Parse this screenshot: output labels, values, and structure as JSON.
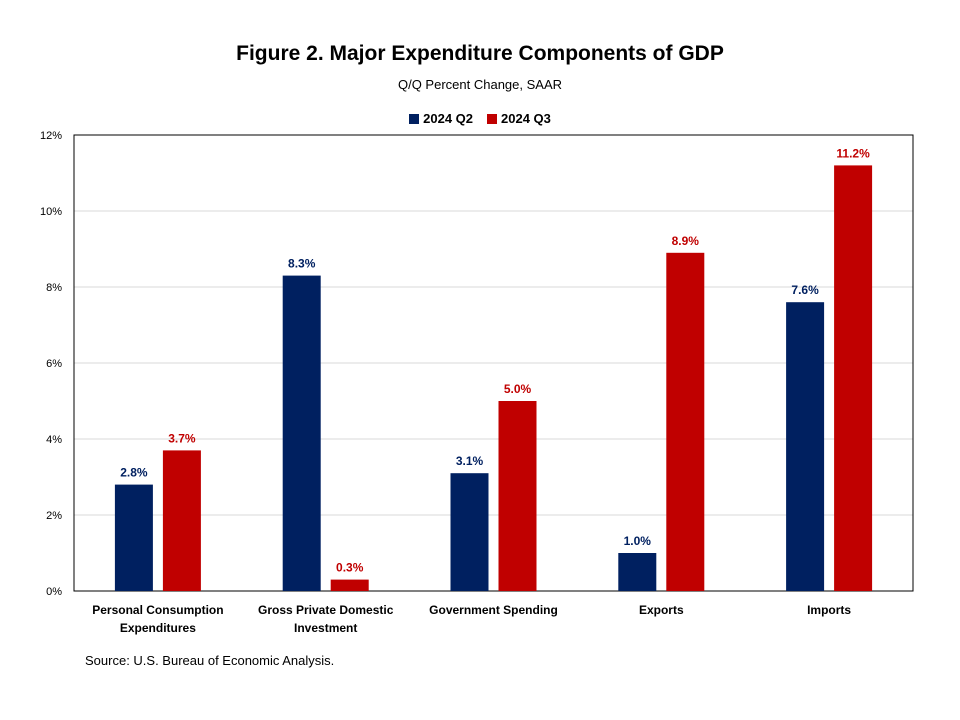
{
  "chart_data": {
    "type": "bar",
    "title": "Figure 2. Major Expenditure Components of GDP",
    "subtitle": "Q/Q Percent Change, SAAR",
    "categories": [
      [
        "Personal Consumption",
        "Expenditures"
      ],
      [
        "Gross Private Domestic",
        "Investment"
      ],
      [
        "Government Spending"
      ],
      [
        "Exports"
      ],
      [
        "Imports"
      ]
    ],
    "series": [
      {
        "name": "2024 Q2",
        "color": "#002060",
        "values": [
          2.8,
          8.3,
          3.1,
          1.0,
          7.6
        ],
        "labels": [
          "2.8%",
          "8.3%",
          "3.1%",
          "1.0%",
          "7.6%"
        ]
      },
      {
        "name": "2024 Q3",
        "color": "#C00000",
        "values": [
          3.7,
          0.3,
          5.0,
          8.9,
          11.2
        ],
        "labels": [
          "3.7%",
          "0.3%",
          "5.0%",
          "8.9%",
          "11.2%"
        ]
      }
    ],
    "ylim": [
      0,
      12
    ],
    "yticks": [
      0,
      2,
      4,
      6,
      8,
      10,
      12
    ],
    "ytick_labels": [
      "0%",
      "2%",
      "4%",
      "6%",
      "8%",
      "10%",
      "12%"
    ],
    "grid": true,
    "legend_position": "top-center"
  },
  "source": "Source: U.S. Bureau of Economic Analysis."
}
